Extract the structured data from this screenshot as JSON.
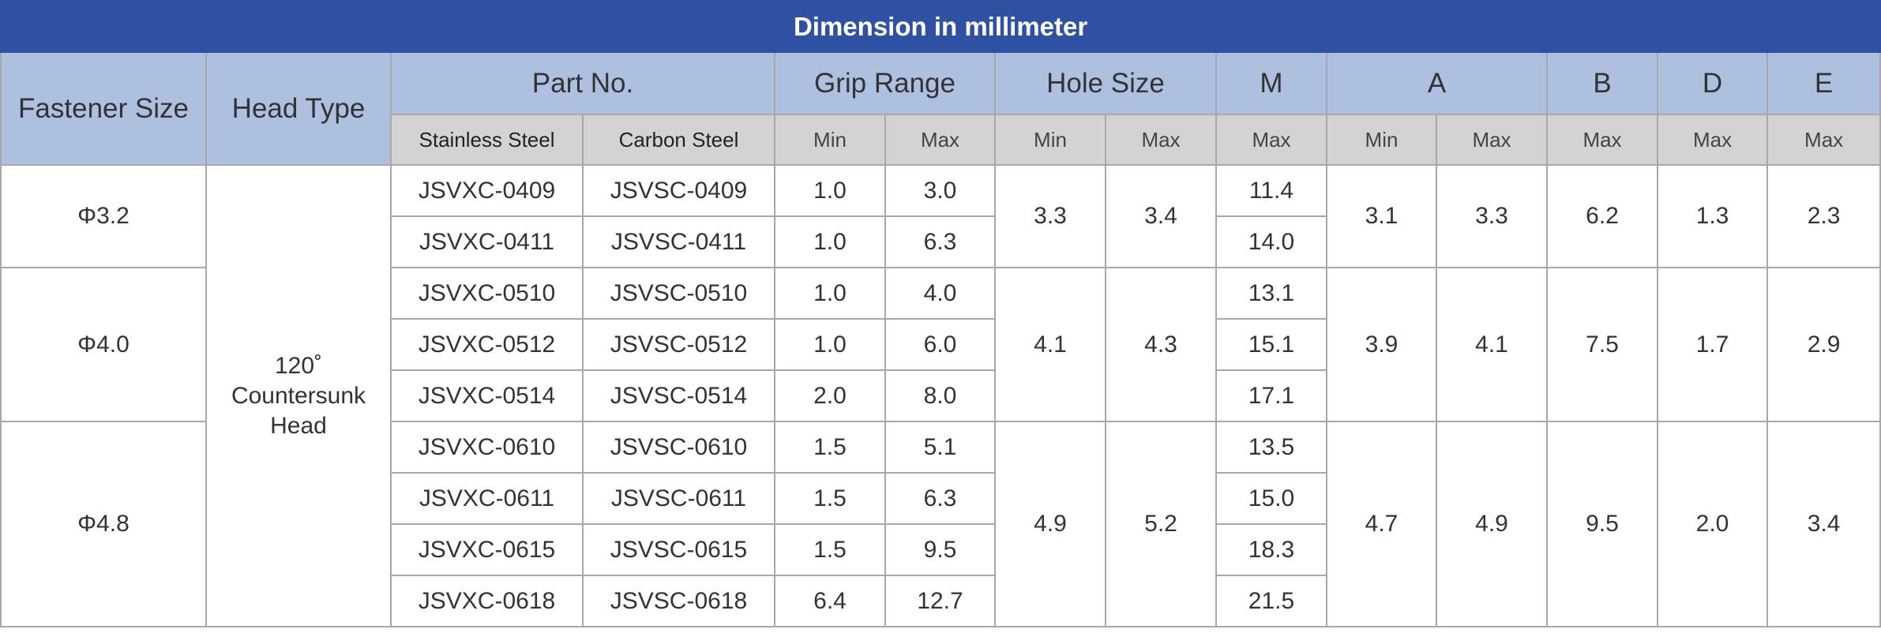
{
  "title": "Dimension in millimeter",
  "header": {
    "fastener_size": "Fastener Size",
    "head_type": "Head Type",
    "part_no": "Part No.",
    "grip_range": "Grip Range",
    "hole_size": "Hole Size",
    "m": "M",
    "a": "A",
    "b": "B",
    "d": "D",
    "e": "E"
  },
  "subheader": [
    "Stainless Steel",
    "Carbon Steel",
    "Min",
    "Max",
    "Min",
    "Max",
    "Max",
    "Min",
    "Max",
    "Max",
    "Max",
    "Max"
  ],
  "head_type": "120˚ Countersunk Head",
  "groups": [
    {
      "size": "Φ3.2",
      "hole_min": "3.3",
      "hole_max": "3.4",
      "a_min": "3.1",
      "a_max": "3.3",
      "b": "6.2",
      "d": "1.3",
      "e": "2.3",
      "rows": [
        {
          "stainless": "JSVXC-0409",
          "carbon": "JSVSC-0409",
          "grip_min": "1.0",
          "grip_max": "3.0",
          "m": "11.4"
        },
        {
          "stainless": "JSVXC-0411",
          "carbon": "JSVSC-0411",
          "grip_min": "1.0",
          "grip_max": "6.3",
          "m": "14.0"
        }
      ]
    },
    {
      "size": "Φ4.0",
      "hole_min": "4.1",
      "hole_max": "4.3",
      "a_min": "3.9",
      "a_max": "4.1",
      "b": "7.5",
      "d": "1.7",
      "e": "2.9",
      "rows": [
        {
          "stainless": "JSVXC-0510",
          "carbon": "JSVSC-0510",
          "grip_min": "1.0",
          "grip_max": "4.0",
          "m": "13.1"
        },
        {
          "stainless": "JSVXC-0512",
          "carbon": "JSVSC-0512",
          "grip_min": "1.0",
          "grip_max": "6.0",
          "m": "15.1"
        },
        {
          "stainless": "JSVXC-0514",
          "carbon": "JSVSC-0514",
          "grip_min": "2.0",
          "grip_max": "8.0",
          "m": "17.1"
        }
      ]
    },
    {
      "size": "Φ4.8",
      "hole_min": "4.9",
      "hole_max": "5.2",
      "a_min": "4.7",
      "a_max": "4.9",
      "b": "9.5",
      "d": "2.0",
      "e": "3.4",
      "rows": [
        {
          "stainless": "JSVXC-0610",
          "carbon": "JSVSC-0610",
          "grip_min": "1.5",
          "grip_max": "5.1",
          "m": "13.5"
        },
        {
          "stainless": "JSVXC-0611",
          "carbon": "JSVSC-0611",
          "grip_min": "1.5",
          "grip_max": "6.3",
          "m": "15.0"
        },
        {
          "stainless": "JSVXC-0615",
          "carbon": "JSVSC-0615",
          "grip_min": "1.5",
          "grip_max": "9.5",
          "m": "18.3"
        },
        {
          "stainless": "JSVXC-0618",
          "carbon": "JSVSC-0618",
          "grip_min": "6.4",
          "grip_max": "12.7",
          "m": "21.5"
        }
      ]
    }
  ]
}
